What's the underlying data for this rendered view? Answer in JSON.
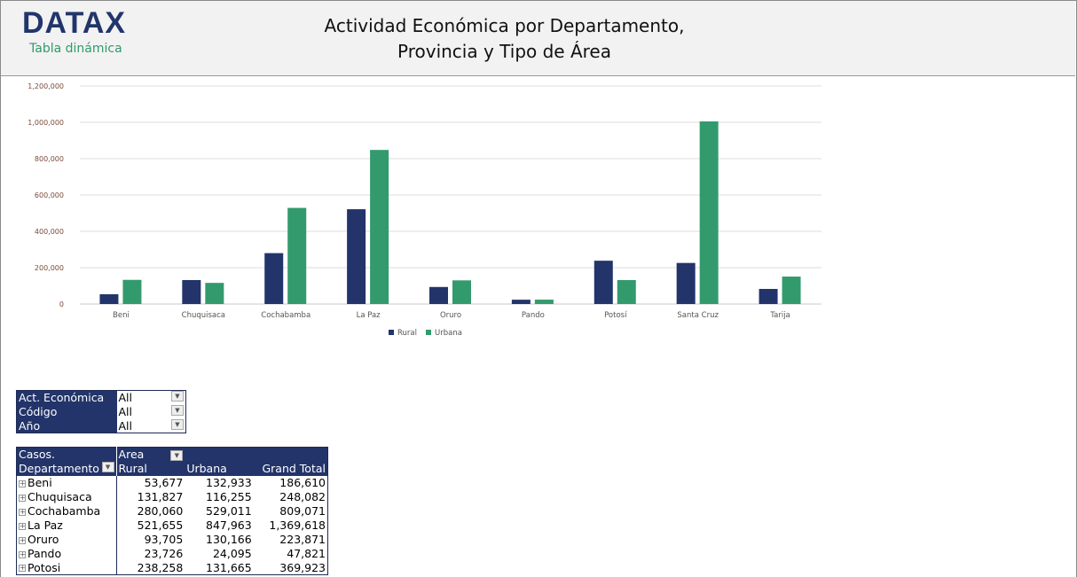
{
  "header": {
    "logo": "DATAX",
    "subtitle": "Tabla dinámica",
    "title_line1": "Actividad Económica por Departamento,",
    "title_line2": "Provincia y Tipo de Área"
  },
  "filters": [
    {
      "label": "Act. Económica",
      "value": "All"
    },
    {
      "label": "Código",
      "value": "All"
    },
    {
      "label": "Año",
      "value": "All"
    }
  ],
  "pivot": {
    "measure": "Casos.",
    "col_field": "Area",
    "row_field": "Departamento",
    "columns": [
      "Rural",
      "Urbana",
      "Grand Total"
    ],
    "rows": [
      [
        "Beni",
        "53,677",
        "132,933",
        "186,610"
      ],
      [
        "Chuquisaca",
        "131,827",
        "116,255",
        "248,082"
      ],
      [
        "Cochabamba",
        "280,060",
        "529,011",
        "809,071"
      ],
      [
        "La Paz",
        "521,655",
        "847,963",
        "1,369,618"
      ],
      [
        "Oruro",
        "93,705",
        "130,166",
        "223,871"
      ],
      [
        "Pando",
        "23,726",
        "24,095",
        "47,821"
      ],
      [
        "Potosi",
        "238,258",
        "131,665",
        "369,923"
      ]
    ]
  },
  "chart_data": {
    "type": "bar",
    "categories": [
      "Beni",
      "Chuquisaca",
      "Cochabamba",
      "La Paz",
      "Oruro",
      "Pando",
      "Potosí",
      "Santa Cruz",
      "Tarija"
    ],
    "series": [
      {
        "name": "Rural",
        "color": "#22346a",
        "values": [
          53677,
          131827,
          280060,
          521655,
          93705,
          23726,
          238258,
          226000,
          83000
        ]
      },
      {
        "name": "Urbana",
        "color": "#339a6e",
        "values": [
          132933,
          116255,
          529011,
          847963,
          130166,
          24095,
          131665,
          1005000,
          151000
        ]
      }
    ],
    "ylim": [
      0,
      1200000
    ],
    "yticks": [
      "0",
      "200,000",
      "400,000",
      "600,000",
      "800,000",
      "1,000,000",
      "1,200,000"
    ],
    "grid": true,
    "legend": "bottom"
  }
}
